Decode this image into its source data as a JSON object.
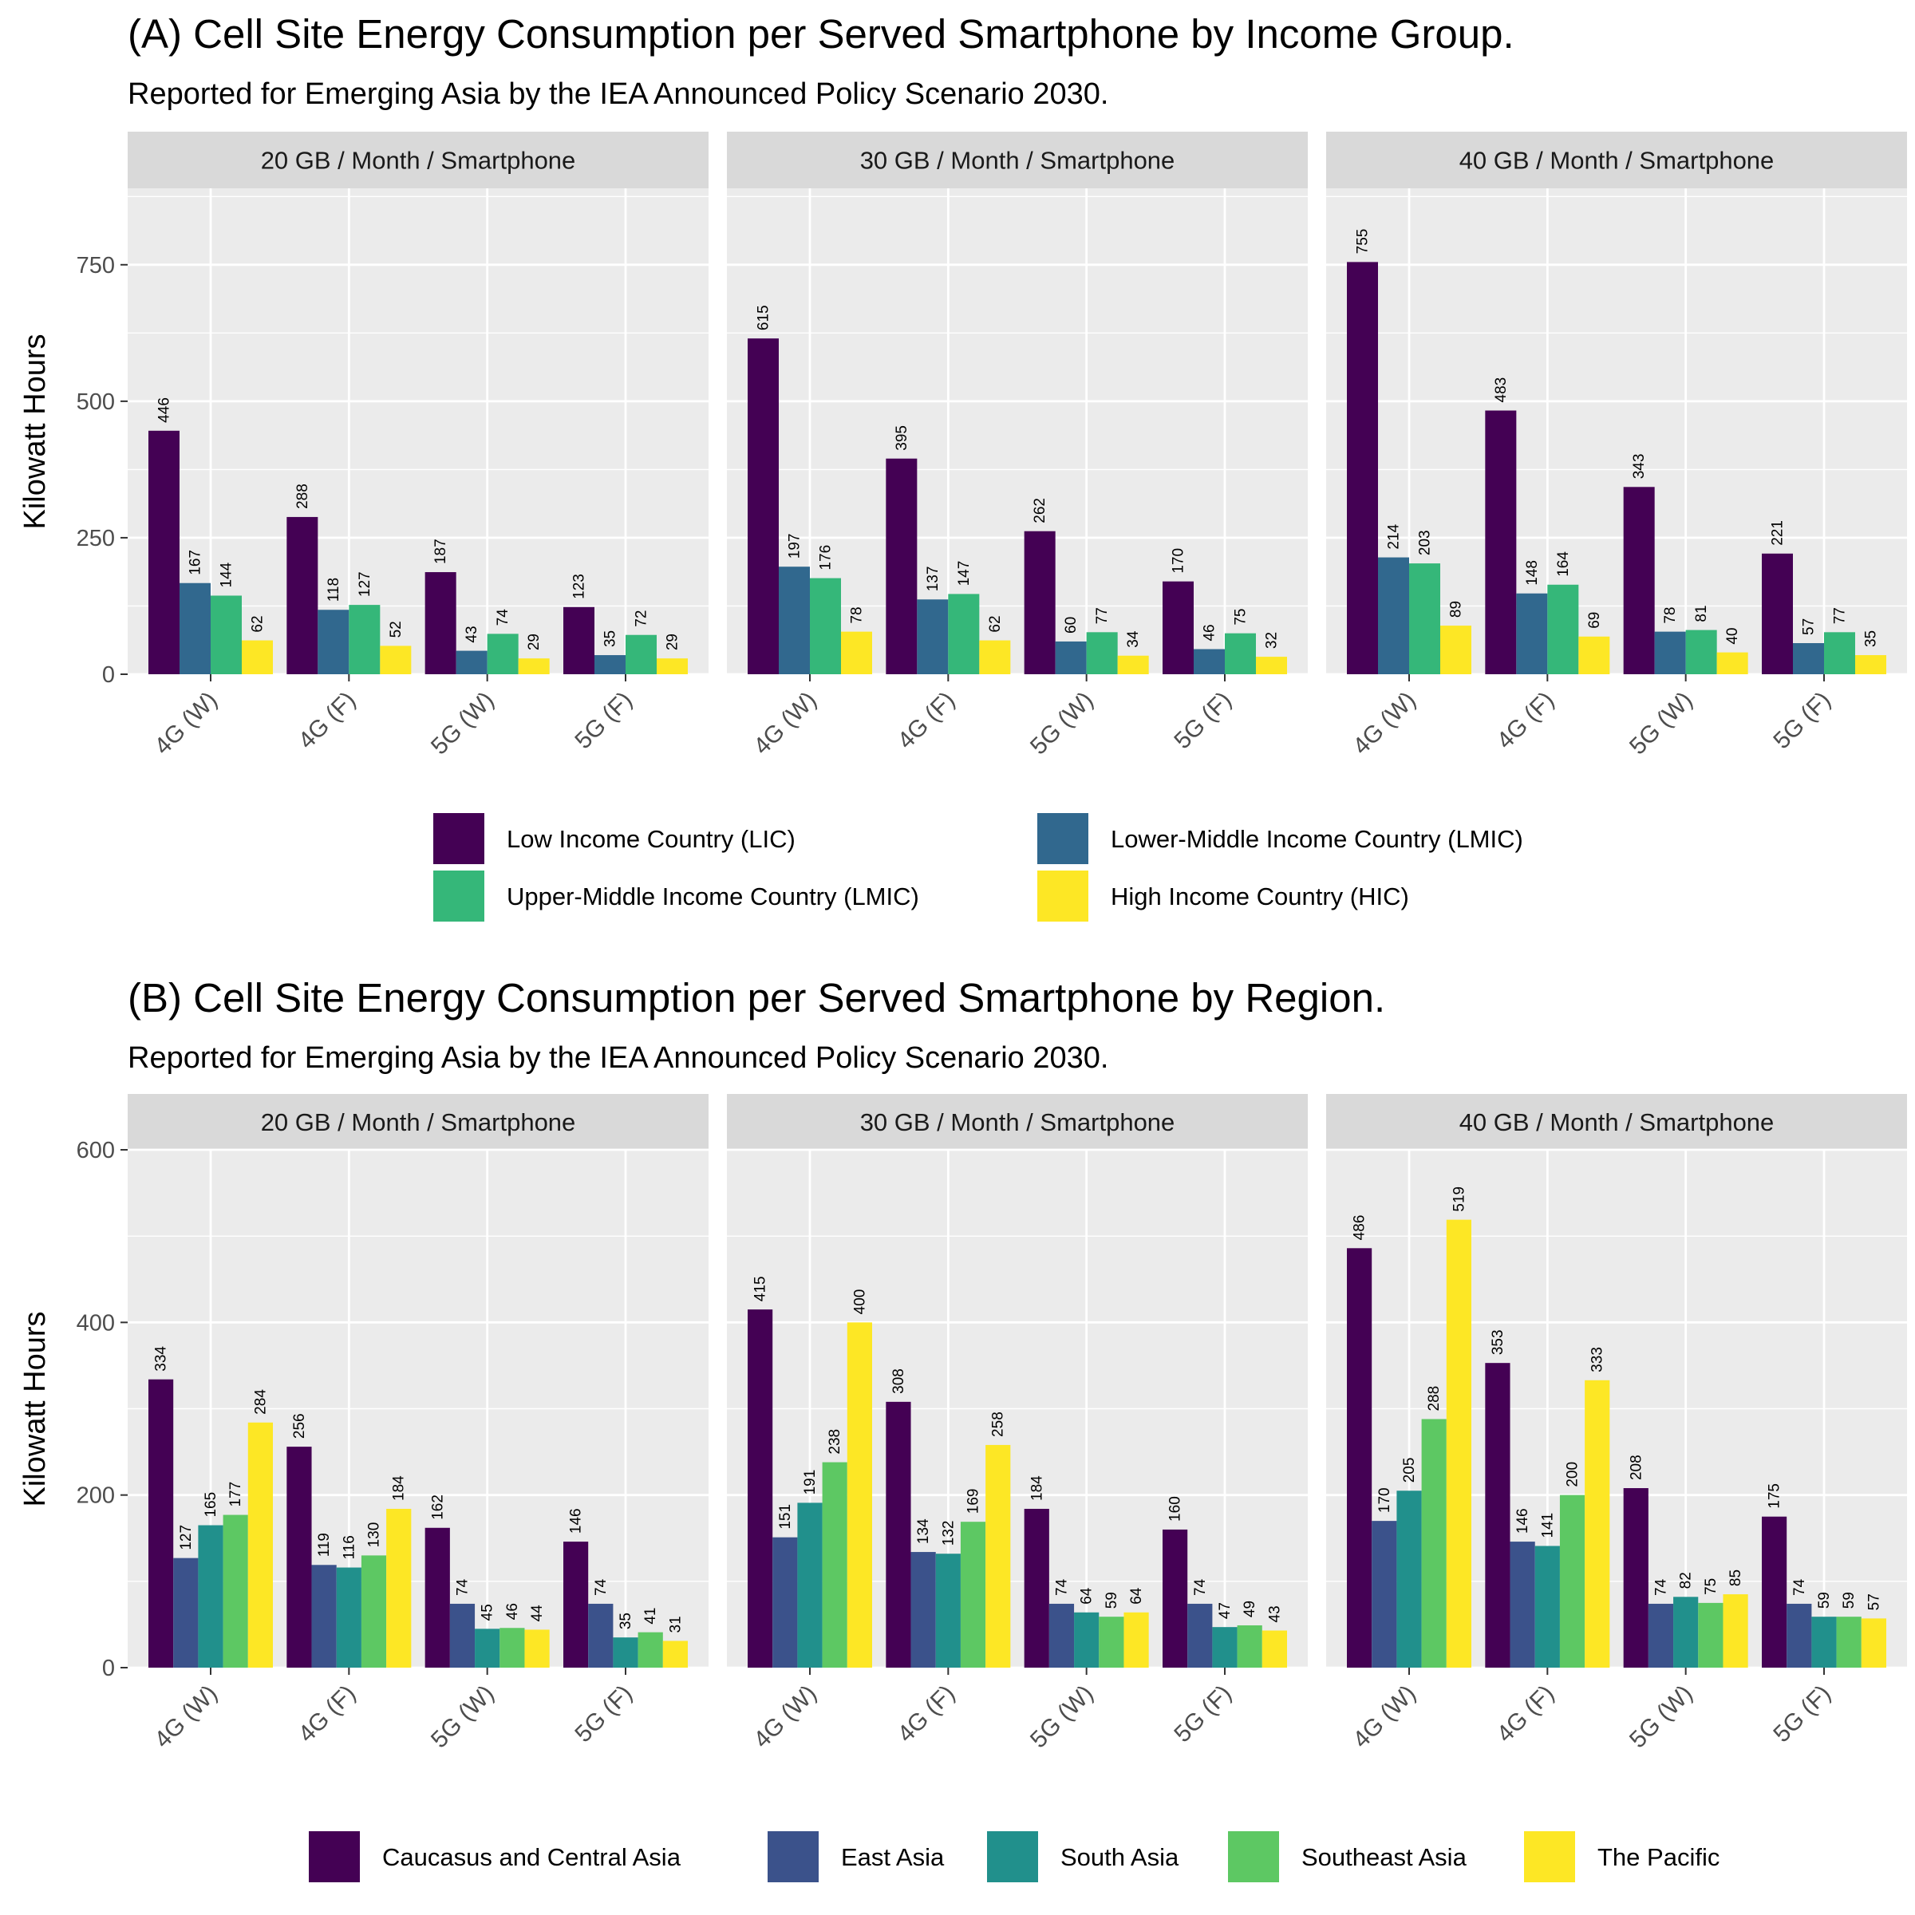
{
  "chart_data": [
    {
      "type": "bar",
      "title": "(A) Cell Site Energy Consumption per Served Smartphone by Income Group.",
      "subtitle": "Reported for Emerging Asia by the IEA Announced Policy Scenario 2030.",
      "ylabel": "Kilowatt Hours",
      "ylim": [
        0,
        890
      ],
      "yticks": [
        0,
        250,
        500,
        750
      ],
      "categories": [
        "4G (W)",
        "4G (F)",
        "5G (W)",
        "5G (F)"
      ],
      "grid": true,
      "legend_position": "bottom",
      "legend_columns": 2,
      "series": [
        {
          "name": "Low Income Country (LIC)",
          "color": "#440154"
        },
        {
          "name": "Lower-Middle Income Country (LMIC)",
          "color": "#31688E"
        },
        {
          "name": "Upper-Middle Income Country (LMIC)",
          "color": "#35B779"
        },
        {
          "name": "High Income Country (HIC)",
          "color": "#FDE725"
        }
      ],
      "facets": [
        {
          "label": "20 GB / Month / Smartphone",
          "values": [
            [
              446,
              288,
              187,
              123
            ],
            [
              167,
              118,
              43,
              35
            ],
            [
              144,
              127,
              74,
              72
            ],
            [
              62,
              52,
              29,
              29
            ]
          ]
        },
        {
          "label": "30 GB / Month / Smartphone",
          "values": [
            [
              615,
              395,
              262,
              170
            ],
            [
              197,
              137,
              60,
              46
            ],
            [
              176,
              147,
              77,
              75
            ],
            [
              78,
              62,
              34,
              32
            ]
          ]
        },
        {
          "label": "40 GB / Month / Smartphone",
          "values": [
            [
              755,
              483,
              343,
              221
            ],
            [
              214,
              148,
              78,
              57
            ],
            [
              203,
              164,
              81,
              77
            ],
            [
              89,
              69,
              40,
              35
            ]
          ]
        }
      ]
    },
    {
      "type": "bar",
      "title": "(B) Cell Site Energy Consumption per Served Smartphone by Region.",
      "subtitle": "Reported for Emerging Asia by the IEA Announced Policy Scenario 2030.",
      "ylabel": "Kilowatt Hours",
      "ylim": [
        0,
        600
      ],
      "yticks": [
        0,
        200,
        400,
        600
      ],
      "categories": [
        "4G (W)",
        "4G (F)",
        "5G (W)",
        "5G (F)"
      ],
      "grid": true,
      "legend_position": "bottom",
      "legend_columns": 5,
      "series": [
        {
          "name": "Caucasus and Central Asia",
          "color": "#440154"
        },
        {
          "name": "East Asia",
          "color": "#3B528B"
        },
        {
          "name": "South Asia",
          "color": "#21908C"
        },
        {
          "name": "Southeast Asia",
          "color": "#5DC863"
        },
        {
          "name": "The Pacific",
          "color": "#FDE725"
        }
      ],
      "facets": [
        {
          "label": "20 GB / Month / Smartphone",
          "values": [
            [
              334,
              256,
              162,
              146
            ],
            [
              127,
              119,
              74,
              74
            ],
            [
              165,
              116,
              45,
              35
            ],
            [
              177,
              130,
              46,
              41
            ],
            [
              284,
              184,
              44,
              31
            ]
          ]
        },
        {
          "label": "30 GB / Month / Smartphone",
          "values": [
            [
              415,
              308,
              184,
              160
            ],
            [
              151,
              134,
              74,
              74
            ],
            [
              191,
              132,
              64,
              47
            ],
            [
              238,
              169,
              59,
              49
            ],
            [
              400,
              258,
              64,
              43
            ]
          ]
        },
        {
          "label": "40 GB / Month / Smartphone",
          "values": [
            [
              486,
              353,
              208,
              175
            ],
            [
              170,
              146,
              74,
              74
            ],
            [
              205,
              141,
              82,
              59
            ],
            [
              288,
              200,
              75,
              59
            ],
            [
              519,
              333,
              85,
              57
            ]
          ]
        }
      ]
    }
  ]
}
